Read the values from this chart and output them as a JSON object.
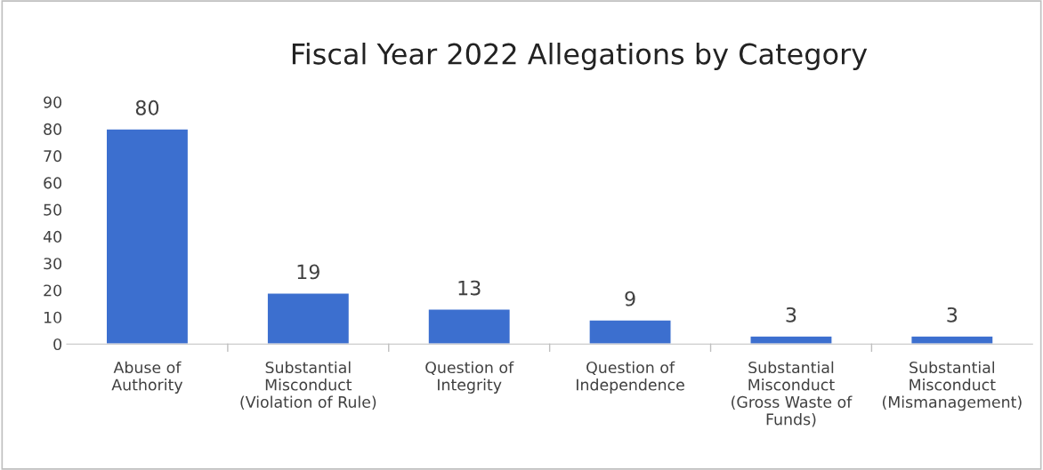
{
  "chart_data": {
    "type": "bar",
    "title": "Fiscal Year 2022 Allegations by Category",
    "categories": [
      "Abuse of\nAuthority",
      "Substantial\nMisconduct\n(Violation of Rule)",
      "Question of\nIntegrity",
      "Question of\nIndependence",
      "Substantial\nMisconduct\n(Gross Waste of\nFunds)",
      "Substantial\nMisconduct\n(Mismanagement)"
    ],
    "values": [
      80,
      19,
      13,
      9,
      3,
      3
    ],
    "color": "#3c6fcf",
    "ylim": [
      0,
      90
    ],
    "yticks": [
      0,
      10,
      20,
      30,
      40,
      50,
      60,
      70,
      80,
      90
    ],
    "grid": false,
    "data_labels": true
  }
}
